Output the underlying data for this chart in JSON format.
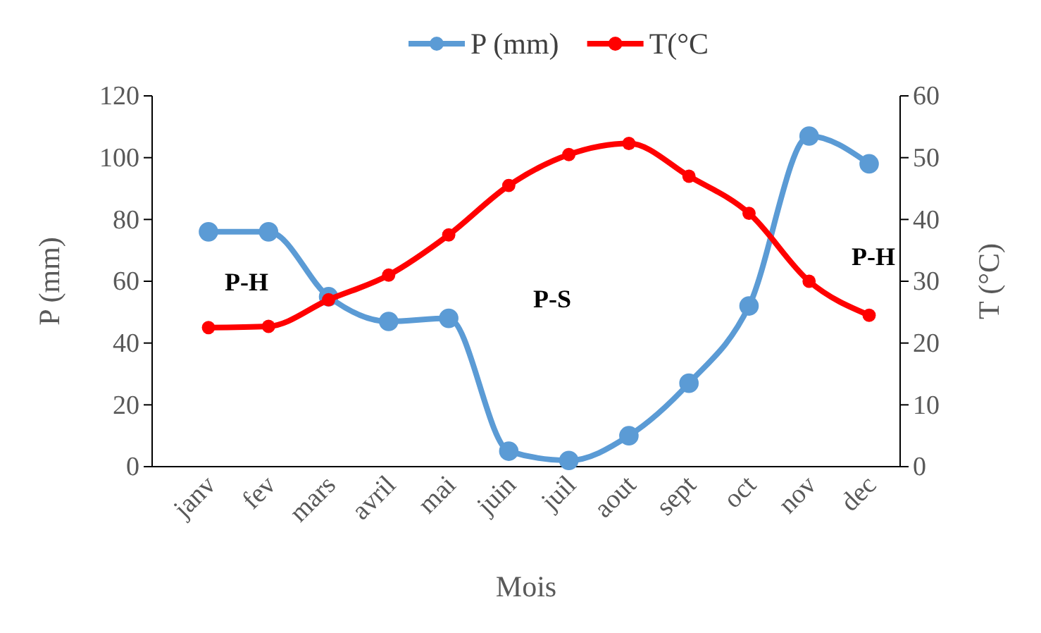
{
  "chart_data": {
    "type": "line",
    "xlabel": "Mois",
    "ylabel": "P (mm)",
    "y2label": "T (°C)",
    "categories": [
      "janv",
      "fev",
      "mars",
      "avril",
      "mai",
      "juin",
      "juil",
      "aout",
      "sept",
      "oct",
      "nov",
      "dec"
    ],
    "series": [
      {
        "name": "P (mm)",
        "color": "#5b9bd5",
        "values": [
          76,
          76,
          55,
          47,
          48,
          5,
          2,
          10,
          27,
          52,
          107,
          98
        ]
      },
      {
        "name": "T(°C",
        "color": "#ff0000",
        "axis": "y2",
        "values": [
          22.5,
          22.7,
          27,
          31,
          37.5,
          45.5,
          50.5,
          52.3,
          47,
          41,
          30,
          24.5
        ]
      }
    ],
    "ylim": [
      0,
      120
    ],
    "yticks": [
      0,
      20,
      40,
      60,
      80,
      100,
      120
    ],
    "y2lim": [
      0,
      60
    ],
    "y2ticks": [
      0,
      10,
      20,
      30,
      40,
      50,
      60
    ],
    "annotations": [
      "P-H",
      "P-S",
      "P-H"
    ],
    "marker": "circle",
    "line_style": "solid",
    "legend": "top",
    "grid": false
  }
}
